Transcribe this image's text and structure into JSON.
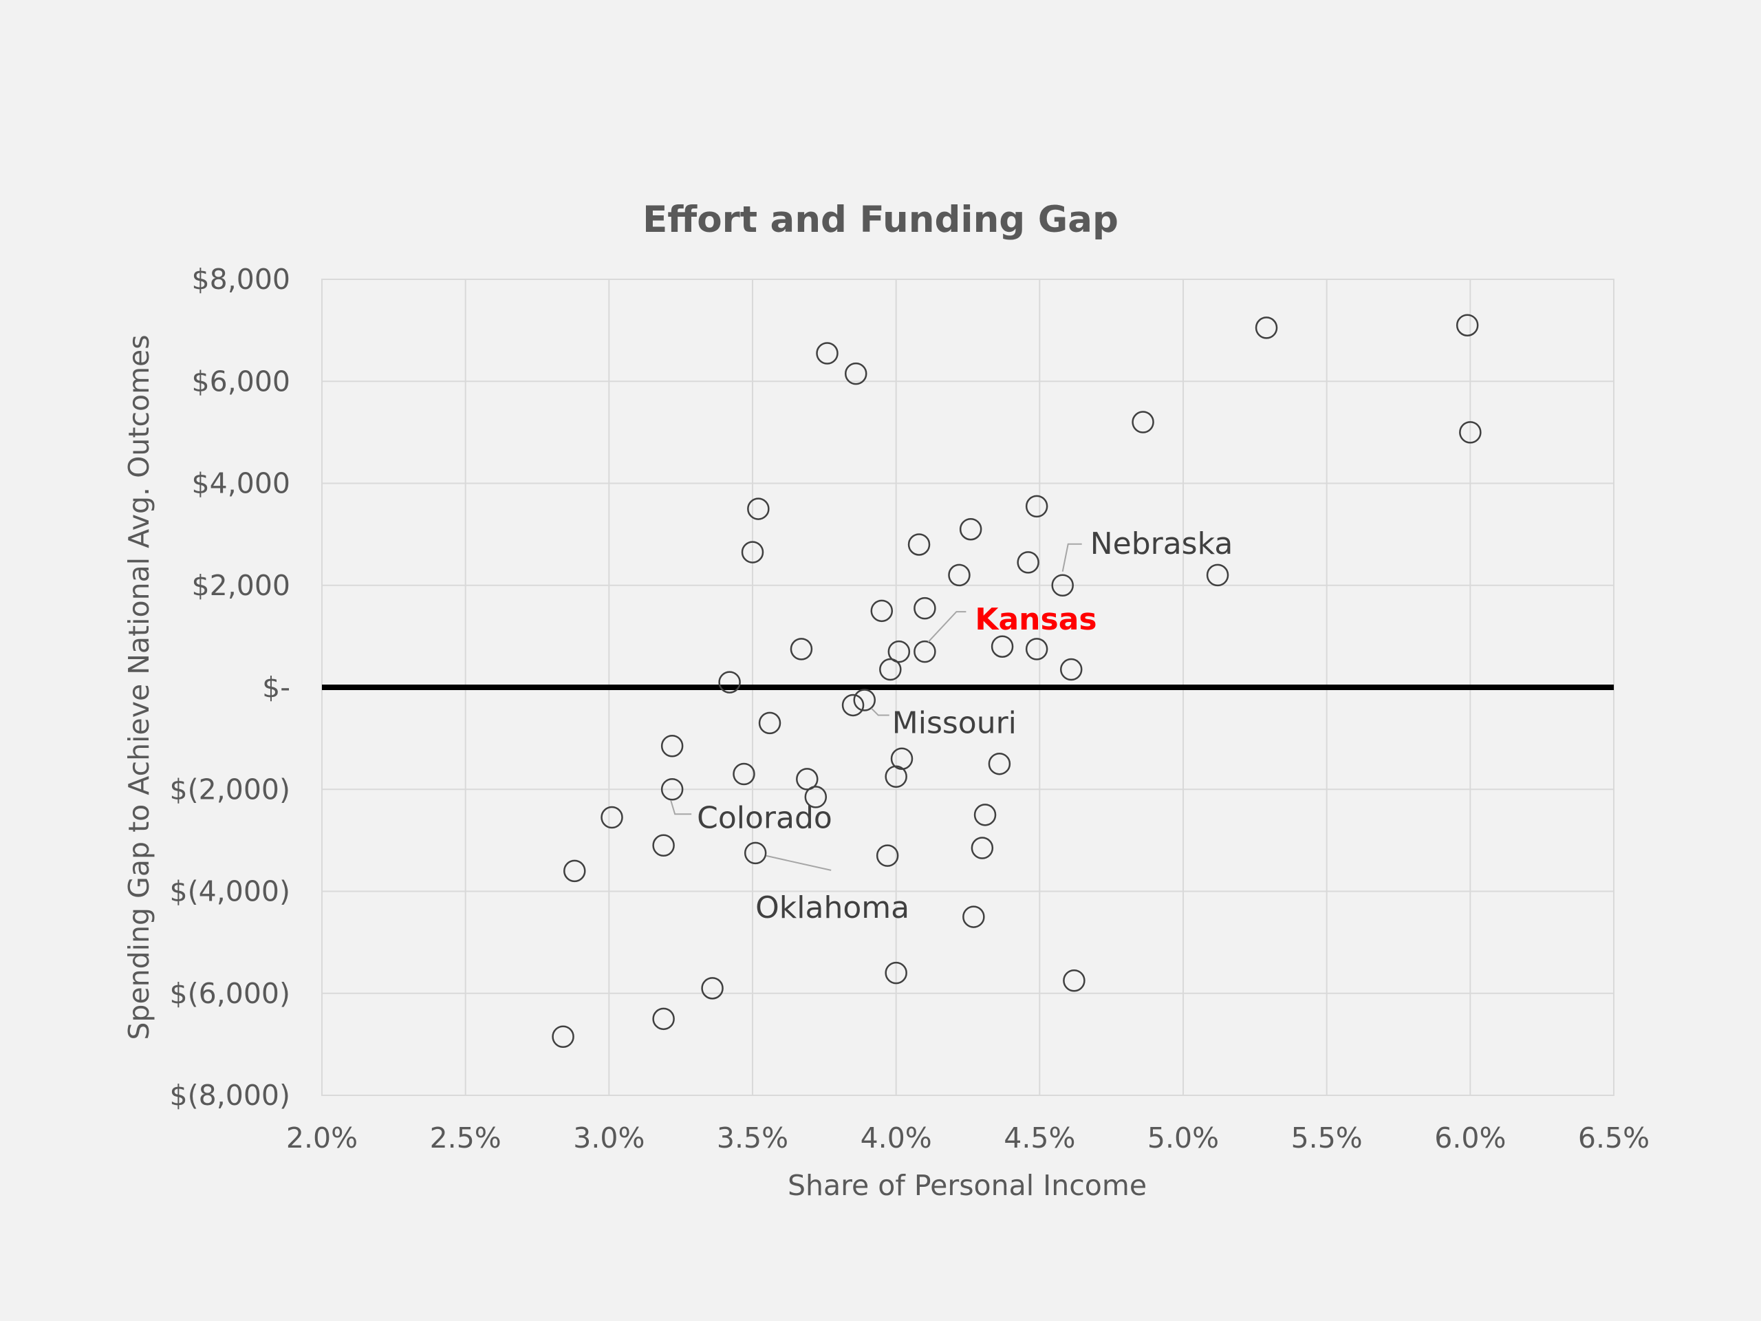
{
  "chart_data": {
    "type": "scatter",
    "title": "Effort and Funding Gap",
    "xlabel": "Share of Personal Income",
    "ylabel": "Spending Gap to Achieve National Avg. Outcomes",
    "xlim": [
      0.02,
      0.065
    ],
    "ylim": [
      -8000,
      8000
    ],
    "x_ticks": [
      0.02,
      0.025,
      0.03,
      0.035,
      0.04,
      0.045,
      0.05,
      0.055,
      0.06,
      0.065
    ],
    "x_tick_labels": [
      "2.0%",
      "2.5%",
      "3.0%",
      "3.5%",
      "4.0%",
      "4.5%",
      "5.0%",
      "5.5%",
      "6.0%",
      "6.5%"
    ],
    "y_ticks": [
      8000,
      6000,
      4000,
      2000,
      0,
      -2000,
      -4000,
      -6000,
      -8000
    ],
    "y_tick_labels": [
      "$8,000",
      "$6,000",
      "$4,000",
      "$2,000",
      "$-",
      "$(2,000)",
      "$(4,000)",
      "$(6,000)",
      "$(8,000)"
    ],
    "grid": true,
    "zero_line": true,
    "marker": "open-circle",
    "points": [
      [
        0.0376,
        6550
      ],
      [
        0.0386,
        6150
      ],
      [
        0.0529,
        7050
      ],
      [
        0.0599,
        7100
      ],
      [
        0.0486,
        5200
      ],
      [
        0.06,
        5000
      ],
      [
        0.0352,
        3500
      ],
      [
        0.0449,
        3550
      ],
      [
        0.0426,
        3100
      ],
      [
        0.035,
        2650
      ],
      [
        0.0408,
        2800
      ],
      [
        0.0446,
        2450
      ],
      [
        0.0422,
        2200
      ],
      [
        0.0458,
        2000
      ],
      [
        0.0512,
        2200
      ],
      [
        0.0395,
        1500
      ],
      [
        0.041,
        1550
      ],
      [
        0.0367,
        750
      ],
      [
        0.0401,
        700
      ],
      [
        0.041,
        700
      ],
      [
        0.0437,
        800
      ],
      [
        0.0449,
        750
      ],
      [
        0.0398,
        350
      ],
      [
        0.0461,
        350
      ],
      [
        0.0342,
        100
      ],
      [
        0.0385,
        -350
      ],
      [
        0.0389,
        -250
      ],
      [
        0.0356,
        -700
      ],
      [
        0.0322,
        -1150
      ],
      [
        0.0402,
        -1400
      ],
      [
        0.0436,
        -1500
      ],
      [
        0.0347,
        -1700
      ],
      [
        0.0369,
        -1800
      ],
      [
        0.04,
        -1750
      ],
      [
        0.0322,
        -2000
      ],
      [
        0.0372,
        -2150
      ],
      [
        0.0301,
        -2550
      ],
      [
        0.0431,
        -2500
      ],
      [
        0.0319,
        -3100
      ],
      [
        0.0351,
        -3250
      ],
      [
        0.0397,
        -3300
      ],
      [
        0.043,
        -3150
      ],
      [
        0.0288,
        -3600
      ],
      [
        0.0427,
        -4500
      ],
      [
        0.04,
        -5600
      ],
      [
        0.0462,
        -5750
      ],
      [
        0.0336,
        -5900
      ],
      [
        0.0319,
        -6500
      ],
      [
        0.0284,
        -6850
      ]
    ],
    "annotations": [
      {
        "text": "Nebraska",
        "x": 0.0458,
        "y": 2000,
        "highlight": false,
        "color": "#404040"
      },
      {
        "text": "Kansas",
        "x": 0.041,
        "y": 700,
        "highlight": true,
        "color": "#ff0000"
      },
      {
        "text": "Missouri",
        "x": 0.0389,
        "y": -250,
        "highlight": false,
        "color": "#404040"
      },
      {
        "text": "Colorado",
        "x": 0.0322,
        "y": -2000,
        "highlight": false,
        "color": "#404040"
      },
      {
        "text": "Oklahoma",
        "x": 0.0351,
        "y": -3250,
        "highlight": false,
        "color": "#404040"
      }
    ]
  }
}
